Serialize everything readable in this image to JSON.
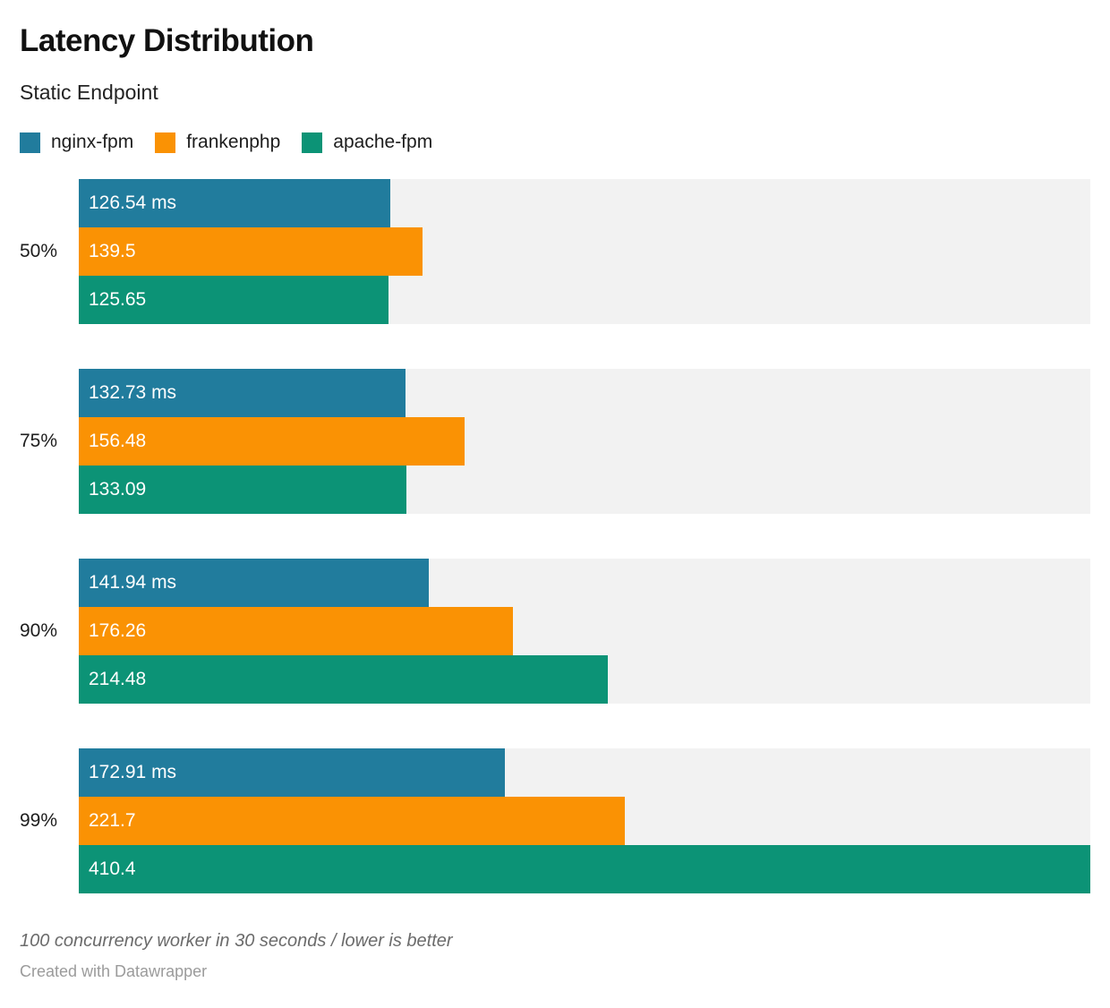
{
  "header": {
    "title": "Latency Distribution",
    "subtitle": "Static Endpoint"
  },
  "legend": [
    {
      "label": "nginx-fpm",
      "color": "#217c9d"
    },
    {
      "label": "frankenphp",
      "color": "#fa9204"
    },
    {
      "label": "apache-fpm",
      "color": "#0c9376"
    }
  ],
  "chart_data": {
    "type": "bar",
    "orientation": "horizontal",
    "title": "Latency Distribution",
    "subtitle": "Static Endpoint",
    "categories": [
      "50%",
      "75%",
      "90%",
      "99%"
    ],
    "series": [
      {
        "name": "nginx-fpm",
        "color": "#217c9d",
        "values": [
          126.54,
          132.73,
          141.94,
          172.91
        ],
        "labels": [
          "126.54 ms",
          "132.73 ms",
          "141.94 ms",
          "172.91 ms"
        ]
      },
      {
        "name": "frankenphp",
        "color": "#fa9204",
        "values": [
          139.5,
          156.48,
          176.26,
          221.7
        ],
        "labels": [
          "139.5",
          "156.48",
          "176.26",
          "221.7"
        ]
      },
      {
        "name": "apache-fpm",
        "color": "#0c9376",
        "values": [
          125.65,
          133.09,
          214.48,
          410.4
        ],
        "labels": [
          "125.65",
          "133.09",
          "214.48",
          "410.4"
        ]
      }
    ],
    "value_unit": "ms",
    "xlim": [
      0,
      410.4
    ],
    "track_color": "#f2f2f2",
    "grid": false,
    "legend_position": "top",
    "value_labels": "inside-start"
  },
  "footer": {
    "note": "100 concurrency worker in 30 seconds / lower is better",
    "credit": "Created with Datawrapper"
  }
}
